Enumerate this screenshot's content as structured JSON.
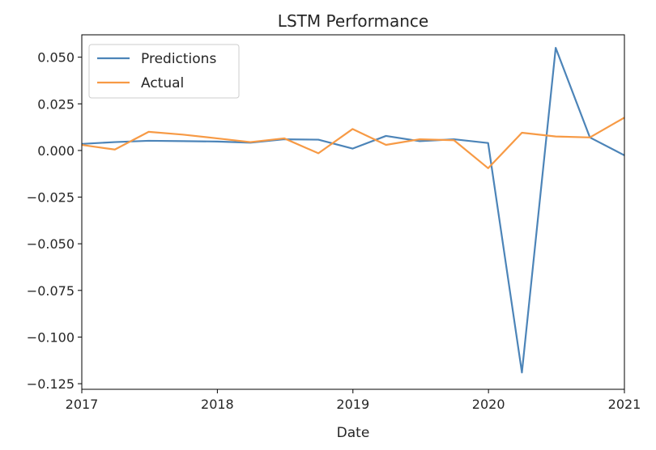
{
  "chart_data": {
    "type": "line",
    "title": "LSTM Performance",
    "xlabel": "Date",
    "ylabel": "",
    "x": [
      "2016-12-31",
      "2017-03-31",
      "2017-06-30",
      "2017-09-30",
      "2017-12-31",
      "2018-03-31",
      "2018-06-30",
      "2018-09-30",
      "2018-12-31",
      "2019-03-31",
      "2019-06-30",
      "2019-09-30",
      "2019-12-31",
      "2020-03-31",
      "2020-06-30",
      "2020-09-30",
      "2020-12-31"
    ],
    "series": [
      {
        "name": "Predictions",
        "color": "#4c84b8",
        "values": [
          0.0035,
          0.0045,
          0.0052,
          0.005,
          0.0048,
          0.0042,
          0.006,
          0.0058,
          0.001,
          0.0078,
          0.005,
          0.006,
          0.004,
          -0.119,
          0.055,
          0.007,
          -0.0025
        ]
      },
      {
        "name": "Actual",
        "color": "#f79a45",
        "values": [
          0.003,
          0.0005,
          0.01,
          0.0085,
          0.0065,
          0.0045,
          0.0065,
          -0.0015,
          0.0115,
          0.003,
          0.006,
          0.0055,
          -0.0095,
          0.0095,
          0.0075,
          0.007,
          0.0175
        ]
      }
    ],
    "xlim": [
      "2017-01-01",
      "2021-01-01"
    ],
    "ylim": [
      -0.128,
      0.062
    ],
    "xticks": [
      {
        "date": "2017-01-01",
        "label": "2017"
      },
      {
        "date": "2018-01-01",
        "label": "2018"
      },
      {
        "date": "2019-01-01",
        "label": "2019"
      },
      {
        "date": "2020-01-01",
        "label": "2020"
      },
      {
        "date": "2021-01-01",
        "label": "2021"
      }
    ],
    "yticks": [
      {
        "value": 0.05,
        "label": "0.050"
      },
      {
        "value": 0.025,
        "label": "0.025"
      },
      {
        "value": 0.0,
        "label": "0.000"
      },
      {
        "value": -0.025,
        "label": "−0.025"
      },
      {
        "value": -0.05,
        "label": "−0.050"
      },
      {
        "value": -0.075,
        "label": "−0.075"
      },
      {
        "value": -0.1,
        "label": "−0.100"
      },
      {
        "value": -0.125,
        "label": "−0.125"
      }
    ],
    "grid": false,
    "legend": "top-left"
  }
}
